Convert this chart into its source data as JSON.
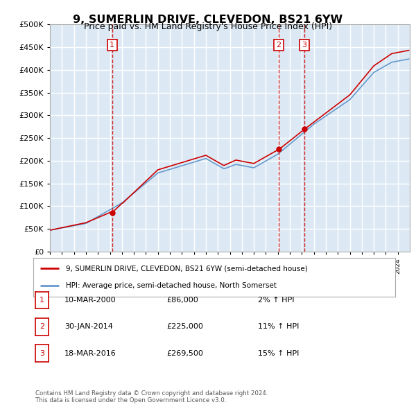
{
  "title": "9, SUMERLIN DRIVE, CLEVEDON, BS21 6YW",
  "subtitle": "Price paid vs. HM Land Registry's House Price Index (HPI)",
  "legend_line1": "9, SUMERLIN DRIVE, CLEVEDON, BS21 6YW (semi-detached house)",
  "legend_line2": "HPI: Average price, semi-detached house, North Somerset",
  "footer1": "Contains HM Land Registry data © Crown copyright and database right 2024.",
  "footer2": "This data is licensed under the Open Government Licence v3.0.",
  "sales_table": [
    [
      "1",
      "10-MAR-2000",
      "£86,000",
      "2% ↑ HPI"
    ],
    [
      "2",
      "30-JAN-2014",
      "£225,000",
      "11% ↑ HPI"
    ],
    [
      "3",
      "18-MAR-2016",
      "£269,500",
      "15% ↑ HPI"
    ]
  ],
  "sale_positions": [
    [
      2000.19,
      86000,
      "1"
    ],
    [
      2014.08,
      225000,
      "2"
    ],
    [
      2016.21,
      269500,
      "3"
    ]
  ],
  "ylim": [
    0,
    500000
  ],
  "yticks": [
    0,
    50000,
    100000,
    150000,
    200000,
    250000,
    300000,
    350000,
    400000,
    450000,
    500000
  ],
  "xlim_start": 1995.0,
  "xlim_end": 2025.0,
  "plot_bg": "#dce9f5",
  "grid_color": "#ffffff",
  "line_color_red": "#cc0000",
  "line_color_blue": "#6699cc",
  "sale_line_color": "#cc0000",
  "sale_box_color": "#cc0000"
}
